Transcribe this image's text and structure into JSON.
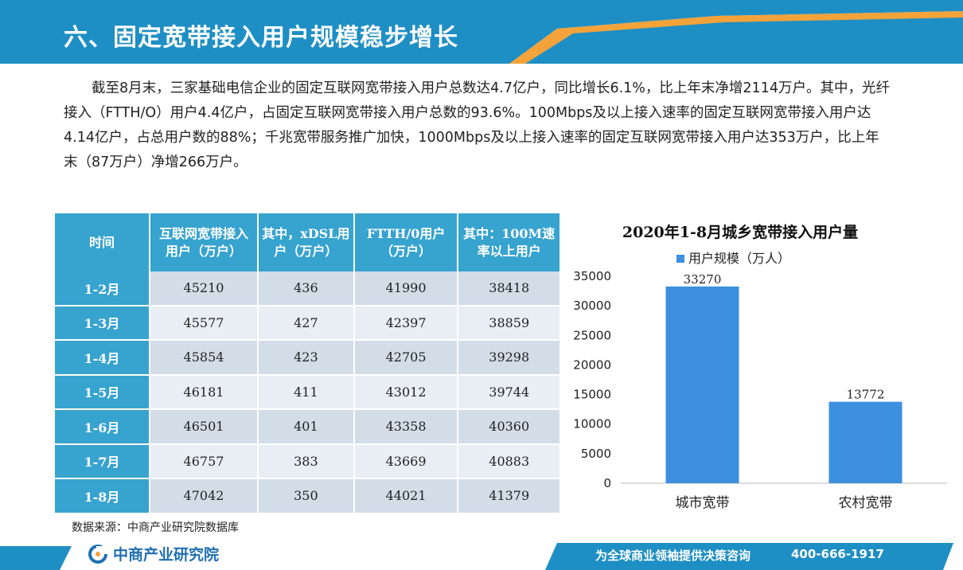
{
  "header": {
    "title": "六、固定宽带接入用户规模稳步增长"
  },
  "paragraph": "截至8月末，三家基础电信企业的固定互联网宽带接入用户总数达4.7亿户，同比增长6.1%，比上年末净增2114万户。其中，光纤接入（FTTH/O）用户4.4亿户，占固定互联网宽带接入用户总数的93.6%。100Mbps及以上接入速率的固定互联网宽带接入用户达4.14亿户，占总用户数的88%；千兆宽带服务推广加快，1000Mbps及以上接入速率的固定互联网宽带接入用户达353万户，比上年末（87万户）净增266万户。",
  "table": {
    "headers": [
      "时间",
      "互联网宽带接入用户（万户）",
      "其中，xDSL用户（万户）",
      "FTTH/0用户（万户）",
      "其中：100M速率以上用户"
    ],
    "rows": [
      [
        "1-2月",
        "45210",
        "436",
        "41990",
        "38418"
      ],
      [
        "1-3月",
        "45577",
        "427",
        "42397",
        "38859"
      ],
      [
        "1-4月",
        "45854",
        "423",
        "42705",
        "39298"
      ],
      [
        "1-5月",
        "46181",
        "411",
        "43012",
        "39744"
      ],
      [
        "1-6月",
        "46501",
        "401",
        "43358",
        "40360"
      ],
      [
        "1-7月",
        "46757",
        "383",
        "43669",
        "40883"
      ],
      [
        "1-8月",
        "47042",
        "350",
        "44021",
        "41379"
      ]
    ]
  },
  "source": "数据来源：中商产业研究院数据库",
  "chart_data": {
    "type": "bar",
    "title": "2020年1-8月城乡宽带接入用户量",
    "categories": [
      "城市宽带",
      "农村宽带"
    ],
    "series": [
      {
        "name": "用户规模（万人）",
        "values": [
          33270,
          13772
        ]
      }
    ],
    "ylim": [
      0,
      35000
    ],
    "yticks": [
      0,
      5000,
      10000,
      15000,
      20000,
      25000,
      30000,
      35000
    ],
    "legend": "top",
    "grid": false,
    "bar_color": "#3d8fe0"
  },
  "footer": {
    "logo_text": "中商产业研究院",
    "slogan": "为全球商业领袖提供决策咨询",
    "phone": "400-666-1917"
  }
}
